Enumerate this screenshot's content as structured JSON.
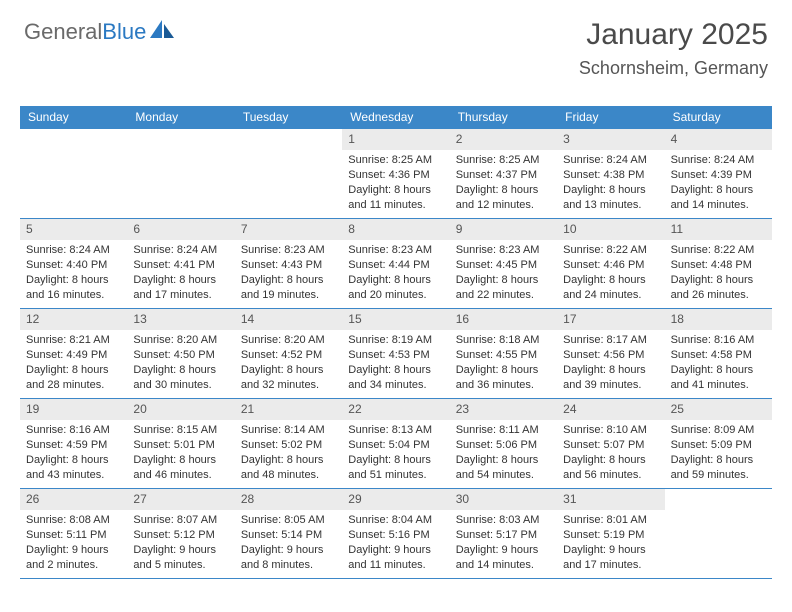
{
  "logo": {
    "text_general": "General",
    "text_blue": "Blue"
  },
  "header": {
    "month_title": "January 2025",
    "location": "Schornsheim, Germany"
  },
  "style": {
    "header_bg": "#3b87c8",
    "header_text": "#ffffff",
    "daynum_bg": "#ebebeb",
    "border_color": "#3b87c8",
    "body_text": "#333333",
    "title_color": "#4a4a4a"
  },
  "day_names": [
    "Sunday",
    "Monday",
    "Tuesday",
    "Wednesday",
    "Thursday",
    "Friday",
    "Saturday"
  ],
  "weeks": [
    [
      null,
      null,
      null,
      {
        "n": "1",
        "sr": "Sunrise: 8:25 AM",
        "ss": "Sunset: 4:36 PM",
        "d1": "Daylight: 8 hours",
        "d2": "and 11 minutes."
      },
      {
        "n": "2",
        "sr": "Sunrise: 8:25 AM",
        "ss": "Sunset: 4:37 PM",
        "d1": "Daylight: 8 hours",
        "d2": "and 12 minutes."
      },
      {
        "n": "3",
        "sr": "Sunrise: 8:24 AM",
        "ss": "Sunset: 4:38 PM",
        "d1": "Daylight: 8 hours",
        "d2": "and 13 minutes."
      },
      {
        "n": "4",
        "sr": "Sunrise: 8:24 AM",
        "ss": "Sunset: 4:39 PM",
        "d1": "Daylight: 8 hours",
        "d2": "and 14 minutes."
      }
    ],
    [
      {
        "n": "5",
        "sr": "Sunrise: 8:24 AM",
        "ss": "Sunset: 4:40 PM",
        "d1": "Daylight: 8 hours",
        "d2": "and 16 minutes."
      },
      {
        "n": "6",
        "sr": "Sunrise: 8:24 AM",
        "ss": "Sunset: 4:41 PM",
        "d1": "Daylight: 8 hours",
        "d2": "and 17 minutes."
      },
      {
        "n": "7",
        "sr": "Sunrise: 8:23 AM",
        "ss": "Sunset: 4:43 PM",
        "d1": "Daylight: 8 hours",
        "d2": "and 19 minutes."
      },
      {
        "n": "8",
        "sr": "Sunrise: 8:23 AM",
        "ss": "Sunset: 4:44 PM",
        "d1": "Daylight: 8 hours",
        "d2": "and 20 minutes."
      },
      {
        "n": "9",
        "sr": "Sunrise: 8:23 AM",
        "ss": "Sunset: 4:45 PM",
        "d1": "Daylight: 8 hours",
        "d2": "and 22 minutes."
      },
      {
        "n": "10",
        "sr": "Sunrise: 8:22 AM",
        "ss": "Sunset: 4:46 PM",
        "d1": "Daylight: 8 hours",
        "d2": "and 24 minutes."
      },
      {
        "n": "11",
        "sr": "Sunrise: 8:22 AM",
        "ss": "Sunset: 4:48 PM",
        "d1": "Daylight: 8 hours",
        "d2": "and 26 minutes."
      }
    ],
    [
      {
        "n": "12",
        "sr": "Sunrise: 8:21 AM",
        "ss": "Sunset: 4:49 PM",
        "d1": "Daylight: 8 hours",
        "d2": "and 28 minutes."
      },
      {
        "n": "13",
        "sr": "Sunrise: 8:20 AM",
        "ss": "Sunset: 4:50 PM",
        "d1": "Daylight: 8 hours",
        "d2": "and 30 minutes."
      },
      {
        "n": "14",
        "sr": "Sunrise: 8:20 AM",
        "ss": "Sunset: 4:52 PM",
        "d1": "Daylight: 8 hours",
        "d2": "and 32 minutes."
      },
      {
        "n": "15",
        "sr": "Sunrise: 8:19 AM",
        "ss": "Sunset: 4:53 PM",
        "d1": "Daylight: 8 hours",
        "d2": "and 34 minutes."
      },
      {
        "n": "16",
        "sr": "Sunrise: 8:18 AM",
        "ss": "Sunset: 4:55 PM",
        "d1": "Daylight: 8 hours",
        "d2": "and 36 minutes."
      },
      {
        "n": "17",
        "sr": "Sunrise: 8:17 AM",
        "ss": "Sunset: 4:56 PM",
        "d1": "Daylight: 8 hours",
        "d2": "and 39 minutes."
      },
      {
        "n": "18",
        "sr": "Sunrise: 8:16 AM",
        "ss": "Sunset: 4:58 PM",
        "d1": "Daylight: 8 hours",
        "d2": "and 41 minutes."
      }
    ],
    [
      {
        "n": "19",
        "sr": "Sunrise: 8:16 AM",
        "ss": "Sunset: 4:59 PM",
        "d1": "Daylight: 8 hours",
        "d2": "and 43 minutes."
      },
      {
        "n": "20",
        "sr": "Sunrise: 8:15 AM",
        "ss": "Sunset: 5:01 PM",
        "d1": "Daylight: 8 hours",
        "d2": "and 46 minutes."
      },
      {
        "n": "21",
        "sr": "Sunrise: 8:14 AM",
        "ss": "Sunset: 5:02 PM",
        "d1": "Daylight: 8 hours",
        "d2": "and 48 minutes."
      },
      {
        "n": "22",
        "sr": "Sunrise: 8:13 AM",
        "ss": "Sunset: 5:04 PM",
        "d1": "Daylight: 8 hours",
        "d2": "and 51 minutes."
      },
      {
        "n": "23",
        "sr": "Sunrise: 8:11 AM",
        "ss": "Sunset: 5:06 PM",
        "d1": "Daylight: 8 hours",
        "d2": "and 54 minutes."
      },
      {
        "n": "24",
        "sr": "Sunrise: 8:10 AM",
        "ss": "Sunset: 5:07 PM",
        "d1": "Daylight: 8 hours",
        "d2": "and 56 minutes."
      },
      {
        "n": "25",
        "sr": "Sunrise: 8:09 AM",
        "ss": "Sunset: 5:09 PM",
        "d1": "Daylight: 8 hours",
        "d2": "and 59 minutes."
      }
    ],
    [
      {
        "n": "26",
        "sr": "Sunrise: 8:08 AM",
        "ss": "Sunset: 5:11 PM",
        "d1": "Daylight: 9 hours",
        "d2": "and 2 minutes."
      },
      {
        "n": "27",
        "sr": "Sunrise: 8:07 AM",
        "ss": "Sunset: 5:12 PM",
        "d1": "Daylight: 9 hours",
        "d2": "and 5 minutes."
      },
      {
        "n": "28",
        "sr": "Sunrise: 8:05 AM",
        "ss": "Sunset: 5:14 PM",
        "d1": "Daylight: 9 hours",
        "d2": "and 8 minutes."
      },
      {
        "n": "29",
        "sr": "Sunrise: 8:04 AM",
        "ss": "Sunset: 5:16 PM",
        "d1": "Daylight: 9 hours",
        "d2": "and 11 minutes."
      },
      {
        "n": "30",
        "sr": "Sunrise: 8:03 AM",
        "ss": "Sunset: 5:17 PM",
        "d1": "Daylight: 9 hours",
        "d2": "and 14 minutes."
      },
      {
        "n": "31",
        "sr": "Sunrise: 8:01 AM",
        "ss": "Sunset: 5:19 PM",
        "d1": "Daylight: 9 hours",
        "d2": "and 17 minutes."
      },
      null
    ]
  ]
}
